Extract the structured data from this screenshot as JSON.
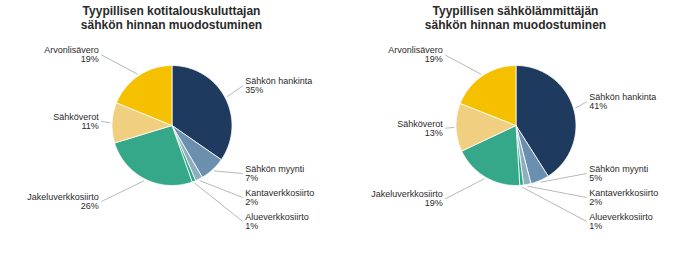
{
  "chart_data": [
    {
      "type": "pie",
      "title": "Tyypillisen kotitalouskuluttajan\nsähkön hinnan muodostuminen",
      "categories": [
        "Sähkön hankinta",
        "Sähkön myynti",
        "Kantaverkkosiirto",
        "Alueverkkosiirto",
        "Jakeluverkkosiirto",
        "Sähköverot",
        "Arvonlisävero"
      ],
      "values": [
        35,
        7,
        2,
        1,
        26,
        11,
        19
      ],
      "value_labels": [
        "35%",
        "7%",
        "2%",
        "1%",
        "26%",
        "11%",
        "19%"
      ],
      "colors": [
        "#1e3a5f",
        "#6b8faf",
        "#8fafc0",
        "#2aaa80",
        "#35a88a",
        "#f0d080",
        "#f5c000"
      ],
      "data_labels": true
    },
    {
      "type": "pie",
      "title": "Tyypillisen sähkölämmittäjän\nsähkön hinnan muodostuminen",
      "categories": [
        "Sähkön hankinta",
        "Sähkön myynti",
        "Kantaverkkosiirto",
        "Alueverkkosiirto",
        "Jakeluverkkosiirto",
        "Sähköverot",
        "Arvonlisävero"
      ],
      "values": [
        41,
        5,
        2,
        1,
        19,
        13,
        19
      ],
      "value_labels": [
        "41%",
        "5%",
        "2%",
        "1%",
        "19%",
        "13%",
        "19%"
      ],
      "colors": [
        "#1e3a5f",
        "#6b8faf",
        "#8fafc0",
        "#2aaa80",
        "#35a88a",
        "#f0d080",
        "#f5c000"
      ],
      "data_labels": true
    }
  ]
}
